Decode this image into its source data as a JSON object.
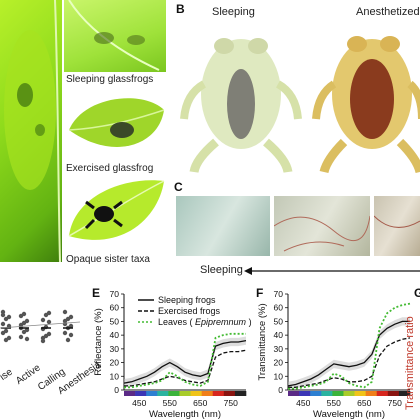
{
  "panels": {
    "A_left_photo": {
      "description_icon": "frog-on-leaf-photo"
    },
    "A_captions": {
      "sleeping": "Sleeping glassfrogs",
      "exercised": "Exercised glassfrog",
      "opaque": "Opaque sister taxa"
    },
    "B": {
      "letter": "B",
      "left_label": "Sleeping",
      "right_label": "Anesthetized"
    },
    "C": {
      "letter": "C",
      "arrow_label": "Sleeping"
    },
    "D_partial": {
      "x_labels": [
        "ise",
        "Active",
        "Calling",
        "Anesthesia"
      ]
    },
    "E": {
      "letter": "E",
      "ylabel": "Reflectance (%)",
      "xlabel": "Wavelength (nm)",
      "legend": [
        {
          "label": "Sleeping frogs",
          "style": "solid"
        },
        {
          "label": "Exercised frogs",
          "style": "dashed"
        },
        {
          "label": "Leaves ( Epipremnum )",
          "label_pre": "Leaves ( ",
          "label_italic": "Epipremnum",
          "label_post": " )",
          "style": "dotted-green"
        }
      ]
    },
    "F": {
      "letter": "F",
      "ylabel": "Transmittance (%)",
      "xlabel": "Wavelength (nm)"
    },
    "G_partial": {
      "letter": "G",
      "ylabel": "Transmittance ratio"
    }
  },
  "chart_data": [
    {
      "type": "line",
      "name_ref": "E",
      "xlabel": "Wavelength (nm)",
      "ylabel": "Reflectance (%)",
      "xlim": [
        400,
        800
      ],
      "ylim": [
        0,
        70
      ],
      "xticks": [
        450,
        550,
        650,
        750
      ],
      "yticks": [
        0,
        10,
        20,
        30,
        40,
        50,
        60,
        70
      ],
      "x": [
        400,
        425,
        450,
        475,
        500,
        525,
        550,
        575,
        600,
        625,
        650,
        675,
        700,
        725,
        750,
        775,
        800
      ],
      "series": [
        {
          "name": "Sleeping frogs",
          "style": "solid",
          "color": "#111111",
          "values": [
            5,
            6,
            8,
            10,
            13,
            17,
            20,
            17,
            13,
            11,
            10,
            12,
            32,
            34,
            35,
            35,
            36
          ]
        },
        {
          "name": "Exercised frogs",
          "style": "dashed",
          "color": "#111111",
          "values": [
            3,
            3,
            4,
            5,
            6,
            8,
            10,
            9,
            7,
            6,
            5,
            7,
            24,
            27,
            28,
            28,
            29
          ]
        },
        {
          "name": "Leaves ( Epipremnum )",
          "style": "dotted",
          "color": "#44bb33",
          "values": [
            2,
            2,
            3,
            4,
            5,
            7,
            13,
            10,
            6,
            4,
            3,
            6,
            38,
            40,
            41,
            41,
            41
          ]
        }
      ]
    },
    {
      "type": "line",
      "name_ref": "F",
      "xlabel": "Wavelength (nm)",
      "ylabel": "Transmittance (%)",
      "xlim": [
        400,
        800
      ],
      "ylim": [
        0,
        70
      ],
      "xticks": [
        450,
        550,
        650,
        750
      ],
      "yticks": [
        0,
        10,
        20,
        30,
        40,
        50,
        60,
        70
      ],
      "x": [
        400,
        425,
        450,
        475,
        500,
        525,
        550,
        575,
        600,
        625,
        650,
        675,
        700,
        725,
        750,
        775,
        800
      ],
      "series": [
        {
          "name": "Sleeping frogs",
          "style": "solid",
          "color": "#111111",
          "values": [
            3,
            4,
            6,
            8,
            11,
            15,
            19,
            18,
            17,
            18,
            20,
            26,
            40,
            45,
            48,
            50,
            50
          ]
        },
        {
          "name": "Exercised frogs",
          "style": "dashed",
          "color": "#111111",
          "values": [
            2,
            2,
            3,
            4,
            5,
            7,
            9,
            8,
            6,
            6,
            7,
            10,
            25,
            32,
            35,
            37,
            38
          ]
        },
        {
          "name": "Leaves ( Epipremnum )",
          "style": "dotted",
          "color": "#44bb33",
          "values": [
            1,
            1,
            2,
            3,
            4,
            6,
            12,
            10,
            5,
            3,
            2,
            6,
            45,
            56,
            60,
            62,
            63
          ]
        }
      ]
    }
  ]
}
